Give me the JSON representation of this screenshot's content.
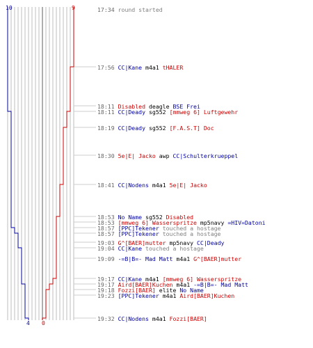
{
  "scoreboard": {
    "blue_start": "10",
    "red_start": "9",
    "blue_final": "4",
    "red_final": "0",
    "blue_color": "#0000a0",
    "red_color": "#cc0000"
  },
  "timeline": {
    "vertical_lines": 20,
    "blue_alive": [
      10,
      10,
      10,
      9,
      9,
      9,
      9,
      9,
      9,
      8,
      7,
      7,
      6,
      6,
      6,
      5,
      5,
      5,
      4,
      4
    ],
    "red_alive": [
      9,
      8,
      8,
      7,
      6,
      6,
      5,
      4,
      4,
      4,
      4,
      4,
      4,
      4,
      3,
      2,
      1,
      1,
      0,
      0
    ]
  },
  "events": [
    {
      "time": "17:34",
      "parts": [
        {
          "c": "g",
          "text": "round started"
        }
      ]
    },
    {
      "time": "17:56",
      "parts": [
        {
          "c": "b",
          "text": "CC|Kane"
        },
        {
          "c": "k",
          "text": "m4a1"
        },
        {
          "c": "r",
          "text": "tHALER"
        }
      ]
    },
    {
      "time": "18:11",
      "parts": [
        {
          "c": "r",
          "text": "Disabled"
        },
        {
          "c": "k",
          "text": "deagle"
        },
        {
          "c": "b",
          "text": "BSE Frei"
        }
      ]
    },
    {
      "time": "18:11",
      "parts": [
        {
          "c": "b",
          "text": "CC|Deady"
        },
        {
          "c": "k",
          "text": "sg552"
        },
        {
          "c": "r",
          "text": "[mmweg 6] Luftgewehr"
        }
      ]
    },
    {
      "time": "18:19",
      "parts": [
        {
          "c": "b",
          "text": "CC|Deady"
        },
        {
          "c": "k",
          "text": "sg552"
        },
        {
          "c": "r",
          "text": "[F.A.S.T] Doc"
        }
      ]
    },
    {
      "time": "18:30",
      "parts": [
        {
          "c": "r",
          "text": "5e|E| Jacko"
        },
        {
          "c": "k",
          "text": "awp"
        },
        {
          "c": "b",
          "text": "CC|Schulterkrueppel"
        }
      ]
    },
    {
      "time": "18:41",
      "parts": [
        {
          "c": "b",
          "text": "CC|Nodens"
        },
        {
          "c": "k",
          "text": "m4a1"
        },
        {
          "c": "r",
          "text": "5e|E| Jacko"
        }
      ]
    },
    {
      "time": "18:53",
      "parts": [
        {
          "c": "b",
          "text": "No Name"
        },
        {
          "c": "k",
          "text": "sg552"
        },
        {
          "c": "r",
          "text": "Disabled"
        }
      ]
    },
    {
      "time": "18:53",
      "parts": [
        {
          "c": "r",
          "text": "[mmweg 6] Wasserspritze"
        },
        {
          "c": "k",
          "text": "mp5navy"
        },
        {
          "c": "b",
          "text": "=HIV=Datoni"
        }
      ]
    },
    {
      "time": "18:57",
      "parts": [
        {
          "c": "b",
          "text": "[PPC]Tekener"
        },
        {
          "c": "g",
          "text": "touched a hostage"
        }
      ]
    },
    {
      "time": "18:57",
      "parts": [
        {
          "c": "b",
          "text": "[PPC]Tekener"
        },
        {
          "c": "g",
          "text": "touched a hostage"
        }
      ]
    },
    {
      "time": "19:03",
      "parts": [
        {
          "c": "r",
          "text": "G^[BAER]mutter"
        },
        {
          "c": "k",
          "text": "mp5navy"
        },
        {
          "c": "b",
          "text": "CC|Deady"
        }
      ]
    },
    {
      "time": "19:04",
      "parts": [
        {
          "c": "b",
          "text": "CC|Kane"
        },
        {
          "c": "g",
          "text": "touched a hostage"
        }
      ]
    },
    {
      "time": "19:09",
      "parts": [
        {
          "c": "b",
          "text": "-=B|B=- Mad Matt"
        },
        {
          "c": "k",
          "text": "m4a1"
        },
        {
          "c": "r",
          "text": "G^[BAER]mutter"
        }
      ]
    },
    {
      "time": "19:17",
      "parts": [
        {
          "c": "b",
          "text": "CC|Kane"
        },
        {
          "c": "k",
          "text": "m4a1"
        },
        {
          "c": "r",
          "text": "[mmweg 6] Wasserspritze"
        }
      ]
    },
    {
      "time": "19:17",
      "parts": [
        {
          "c": "r",
          "text": "Aird[BAER]Kuchen"
        },
        {
          "c": "k",
          "text": "m4a1"
        },
        {
          "c": "b",
          "text": "-=B|B=- Mad Matt"
        }
      ]
    },
    {
      "time": "19:18",
      "parts": [
        {
          "c": "r",
          "text": "Fozzi[BAER]"
        },
        {
          "c": "k",
          "text": "elite"
        },
        {
          "c": "b",
          "text": "No Name"
        }
      ]
    },
    {
      "time": "19:23",
      "parts": [
        {
          "c": "b",
          "text": "[PPC]Tekener"
        },
        {
          "c": "k",
          "text": "m4a1"
        },
        {
          "c": "r",
          "text": "Aird[BAER]Kuchen"
        }
      ]
    },
    {
      "time": "19:32",
      "parts": [
        {
          "c": "b",
          "text": "CC|Nodens"
        },
        {
          "c": "k",
          "text": "m4a1"
        },
        {
          "c": "r",
          "text": "Fozzi[BAER]"
        }
      ]
    }
  ]
}
